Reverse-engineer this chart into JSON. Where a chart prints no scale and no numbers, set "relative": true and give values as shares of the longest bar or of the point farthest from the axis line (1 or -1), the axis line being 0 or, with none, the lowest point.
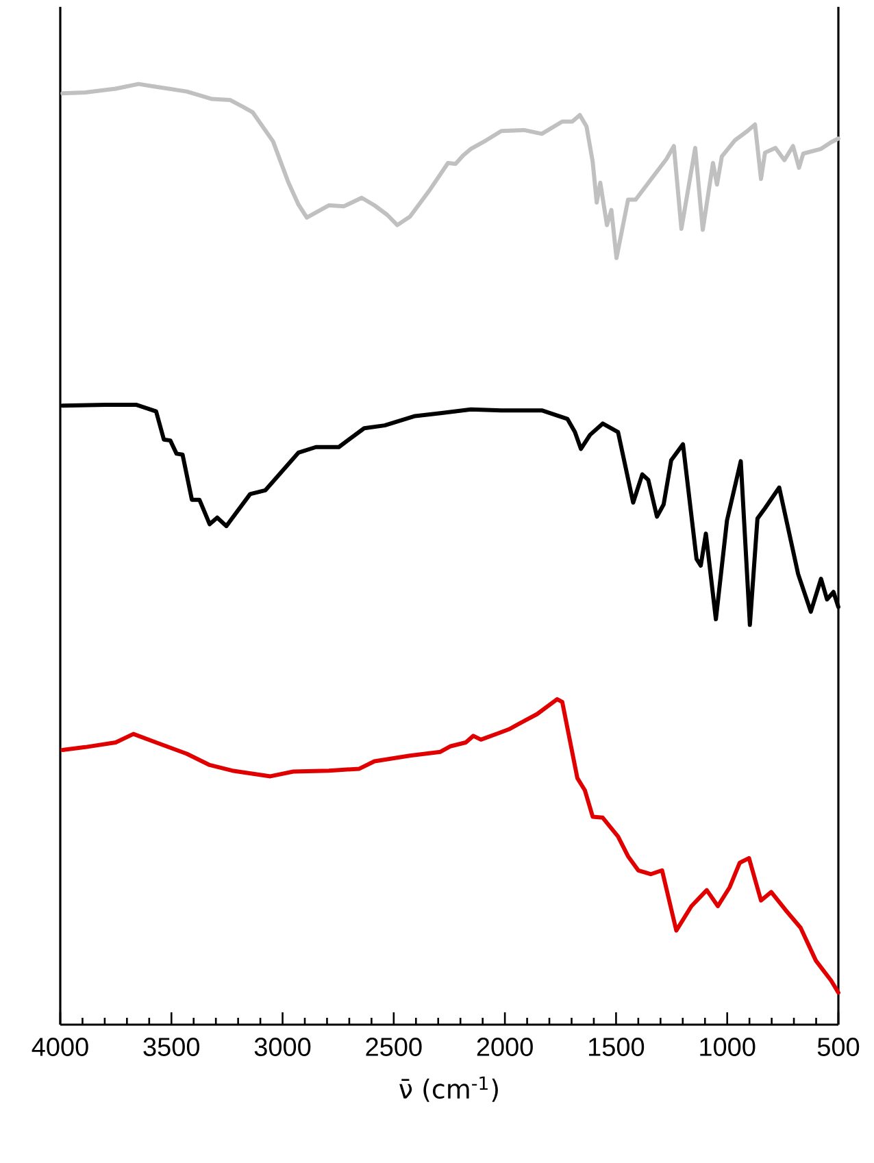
{
  "chart_data": {
    "type": "line",
    "relative": true,
    "xlabel": "ν̄ (cm$^{-1}$)",
    "xlim": [
      4000,
      500
    ],
    "xticks": [
      4000,
      3500,
      3000,
      2500,
      2000,
      1500,
      1000,
      500
    ],
    "tick_labels": "x",
    "series": [
      {
        "color": "#c0c0c0",
        "x": [
          3990,
          3888,
          3751,
          3648,
          3569,
          3431,
          3317,
          3237,
          3180,
          3135,
          3043,
          2975,
          2929,
          2891,
          2792,
          2724,
          2644,
          2587,
          2530,
          2484,
          2427,
          2336,
          2256,
          2222,
          2188,
          2153,
          2085,
          2016,
          1914,
          1834,
          1742,
          1697,
          1663,
          1633,
          1605,
          1587,
          1571,
          1541,
          1521,
          1498,
          1446,
          1412,
          1332,
          1274,
          1240,
          1206,
          1144,
          1110,
          1064,
          1046,
          1024,
          966,
          909,
          875,
          848,
          830,
          783,
          743,
          704,
          677,
          658,
          578,
          533,
          500
        ],
        "values": [
          0.99,
          0.991,
          0.995,
          1.0,
          0.997,
          0.992,
          0.984,
          0.983,
          0.976,
          0.97,
          0.939,
          0.896,
          0.872,
          0.858,
          0.871,
          0.87,
          0.879,
          0.871,
          0.861,
          0.85,
          0.859,
          0.888,
          0.916,
          0.915,
          0.924,
          0.931,
          0.94,
          0.95,
          0.951,
          0.947,
          0.96,
          0.96,
          0.967,
          0.955,
          0.917,
          0.874,
          0.895,
          0.85,
          0.866,
          0.815,
          0.877,
          0.877,
          0.902,
          0.92,
          0.934,
          0.846,
          0.932,
          0.845,
          0.916,
          0.893,
          0.923,
          0.94,
          0.95,
          0.957,
          0.899,
          0.927,
          0.932,
          0.919,
          0.934,
          0.911,
          0.926,
          0.931,
          0.938,
          0.942
        ]
      },
      {
        "color": "#000000",
        "x": [
          3990,
          3797,
          3659,
          3569,
          3534,
          3505,
          3477,
          3450,
          3408,
          3374,
          3328,
          3294,
          3253,
          3146,
          3078,
          2929,
          2850,
          2747,
          2633,
          2541,
          2404,
          2290,
          2153,
          2016,
          1834,
          1719,
          1685,
          1658,
          1617,
          1560,
          1491,
          1423,
          1382,
          1355,
          1316,
          1286,
          1252,
          1199,
          1138,
          1119,
          1096,
          1051,
          1001,
          939,
          898,
          864,
          830,
          766,
          681,
          624,
          578,
          551,
          522,
          500
        ],
        "values": [
          0.658,
          0.659,
          0.659,
          0.652,
          0.622,
          0.621,
          0.607,
          0.606,
          0.558,
          0.558,
          0.532,
          0.539,
          0.53,
          0.564,
          0.568,
          0.608,
          0.614,
          0.614,
          0.634,
          0.637,
          0.647,
          0.65,
          0.654,
          0.653,
          0.653,
          0.644,
          0.63,
          0.612,
          0.627,
          0.639,
          0.63,
          0.555,
          0.585,
          0.579,
          0.54,
          0.553,
          0.6,
          0.617,
          0.495,
          0.488,
          0.522,
          0.431,
          0.536,
          0.599,
          0.425,
          0.538,
          0.549,
          0.571,
          0.479,
          0.439,
          0.474,
          0.452,
          0.46,
          0.444
        ]
      },
      {
        "color": "#e00000",
        "x": [
          3990,
          3888,
          3751,
          3671,
          3569,
          3431,
          3328,
          3226,
          3055,
          2952,
          2792,
          2655,
          2587,
          2427,
          2290,
          2244,
          2176,
          2142,
          2108,
          2027,
          1982,
          1936,
          1856,
          1765,
          1742,
          1674,
          1640,
          1605,
          1560,
          1491,
          1446,
          1400,
          1343,
          1293,
          1229,
          1161,
          1092,
          1042,
          989,
          944,
          902,
          848,
          802,
          738,
          670,
          601,
          533,
          500
        ],
        "values": [
          0.292,
          0.295,
          0.3,
          0.309,
          0.3,
          0.288,
          0.276,
          0.27,
          0.264,
          0.269,
          0.27,
          0.272,
          0.28,
          0.286,
          0.29,
          0.296,
          0.3,
          0.307,
          0.303,
          0.31,
          0.314,
          0.32,
          0.33,
          0.346,
          0.343,
          0.262,
          0.249,
          0.221,
          0.22,
          0.2,
          0.179,
          0.164,
          0.16,
          0.164,
          0.1,
          0.126,
          0.143,
          0.126,
          0.146,
          0.172,
          0.177,
          0.132,
          0.141,
          0.122,
          0.103,
          0.068,
          0.047,
          0.034
        ]
      }
    ]
  }
}
